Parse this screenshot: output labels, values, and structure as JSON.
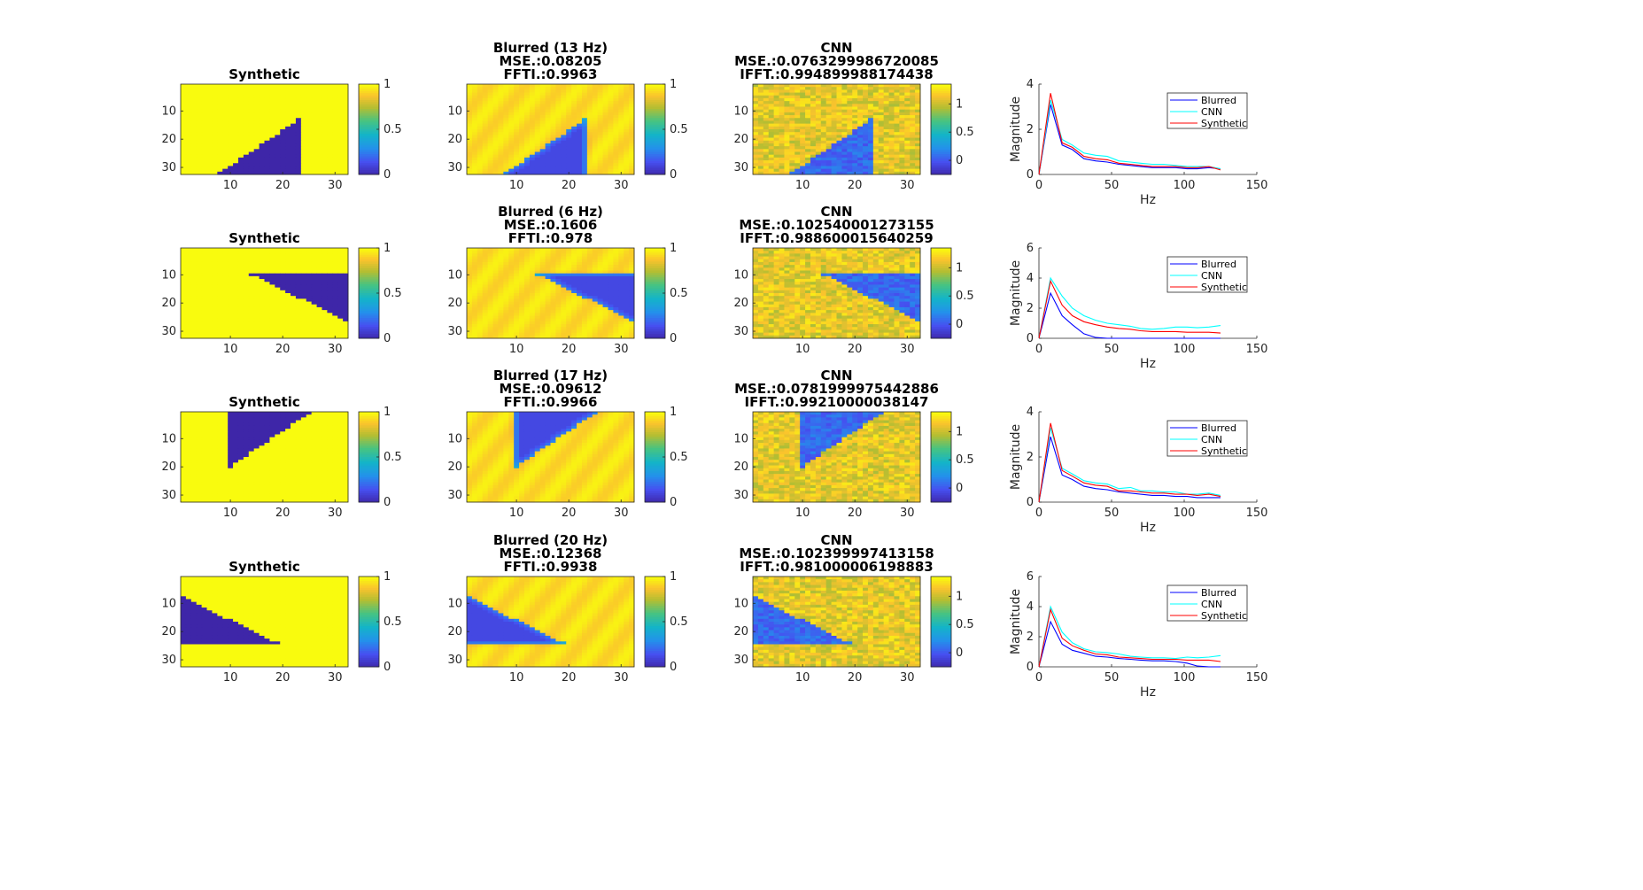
{
  "chart_data": [
    {
      "row": 0,
      "type": "heatmap",
      "panels": [
        {
          "kind": "synthetic",
          "title_lines": [
            "Synthetic"
          ],
          "pattern": {
            "shape": "tri_bottom",
            "x1": 8,
            "x2": 23,
            "ytop": 13
          },
          "cmax": 1,
          "cbar_ticks": [
            "1",
            "0.5",
            "0"
          ]
        },
        {
          "kind": "blurred",
          "title_lines": [
            "Blurred (13 Hz)",
            "MSE.:0.08205",
            "FFTI.:0.9963"
          ],
          "pattern": {
            "shape": "tri_bottom",
            "x1": 8,
            "x2": 23,
            "ytop": 13
          },
          "cmax": 1,
          "cbar_ticks": [
            "1",
            "0.5",
            "0"
          ]
        },
        {
          "kind": "cnn",
          "title_lines": [
            "CNN",
            "MSE.:0.0763299986720085",
            "IFFT.:0.994899988174438"
          ],
          "pattern": {
            "shape": "tri_bottom",
            "x1": 8,
            "x2": 23,
            "ytop": 13
          },
          "cmax": 1.35,
          "cbar_ticks": [
            "1",
            "0.5",
            "0"
          ]
        }
      ],
      "spectrum": {
        "type": "line",
        "xlabel": "Hz",
        "ylabel": "Magnitude",
        "xlim": [
          0,
          150
        ],
        "ylim": [
          0,
          4
        ],
        "yticks": [
          "0",
          "2",
          "4"
        ],
        "xticks": [
          "0",
          "50",
          "100",
          "150"
        ],
        "legend": [
          "Blurred",
          "CNN",
          "Synthetic"
        ],
        "x": [
          0,
          8,
          16,
          23,
          31,
          39,
          47,
          55,
          63,
          70,
          78,
          86,
          94,
          102,
          109,
          117,
          125
        ],
        "series": [
          {
            "name": "Blurred",
            "values": [
              0,
              3.1,
              1.3,
              1.1,
              0.7,
              0.6,
              0.55,
              0.45,
              0.4,
              0.35,
              0.3,
              0.3,
              0.3,
              0.25,
              0.25,
              0.3,
              0.25
            ]
          },
          {
            "name": "CNN",
            "values": [
              0,
              3.3,
              1.55,
              1.3,
              0.95,
              0.85,
              0.8,
              0.6,
              0.55,
              0.5,
              0.45,
              0.45,
              0.4,
              0.35,
              0.35,
              0.35,
              0.25
            ]
          },
          {
            "name": "Synthetic",
            "values": [
              0,
              3.6,
              1.4,
              1.2,
              0.8,
              0.7,
              0.65,
              0.5,
              0.45,
              0.4,
              0.35,
              0.35,
              0.35,
              0.3,
              0.3,
              0.35,
              0.2
            ]
          }
        ]
      }
    },
    {
      "row": 1,
      "type": "heatmap",
      "panels": [
        {
          "kind": "synthetic",
          "title_lines": [
            "Synthetic"
          ],
          "pattern": {
            "shape": "tri_top_right",
            "x1": 14,
            "ytop": 10,
            "ybot": 26
          },
          "cmax": 1,
          "cbar_ticks": [
            "1",
            "0.5",
            "0"
          ]
        },
        {
          "kind": "blurred",
          "title_lines": [
            "Blurred (6 Hz)",
            "MSE.:0.1606",
            "FFTI.:0.978"
          ],
          "pattern": {
            "shape": "tri_top_right",
            "x1": 14,
            "ytop": 10,
            "ybot": 26
          },
          "cmax": 1,
          "cbar_ticks": [
            "1",
            "0.5",
            "0"
          ]
        },
        {
          "kind": "cnn",
          "title_lines": [
            "CNN",
            "MSE.:0.102540001273155",
            "IFFT.:0.988600015640259"
          ],
          "pattern": {
            "shape": "tri_top_right",
            "x1": 14,
            "ytop": 10,
            "ybot": 26
          },
          "cmax": 1.35,
          "cbar_ticks": [
            "1",
            "0.5",
            "0"
          ]
        }
      ],
      "spectrum": {
        "type": "line",
        "xlabel": "Hz",
        "ylabel": "Magnitude",
        "xlim": [
          0,
          150
        ],
        "ylim": [
          0,
          6
        ],
        "yticks": [
          "0",
          "2",
          "4",
          "6"
        ],
        "xticks": [
          "0",
          "50",
          "100",
          "150"
        ],
        "legend": [
          "Blurred",
          "CNN",
          "Synthetic"
        ],
        "x": [
          0,
          8,
          16,
          23,
          31,
          39,
          47,
          55,
          63,
          70,
          78,
          86,
          94,
          102,
          109,
          117,
          125
        ],
        "series": [
          {
            "name": "Blurred",
            "values": [
              0,
              3,
              1.5,
              0.9,
              0.3,
              0.05,
              0,
              0,
              0,
              0,
              0,
              0,
              0,
              0,
              0,
              0,
              0
            ]
          },
          {
            "name": "CNN",
            "values": [
              0,
              4,
              2.8,
              2,
              1.5,
              1.2,
              1,
              0.9,
              0.8,
              0.65,
              0.6,
              0.65,
              0.75,
              0.75,
              0.7,
              0.75,
              0.85
            ]
          },
          {
            "name": "Synthetic",
            "values": [
              0,
              3.8,
              2.2,
              1.5,
              1.1,
              0.9,
              0.75,
              0.65,
              0.6,
              0.5,
              0.45,
              0.45,
              0.45,
              0.4,
              0.4,
              0.4,
              0.35
            ]
          }
        ]
      }
    },
    {
      "row": 2,
      "type": "heatmap",
      "panels": [
        {
          "kind": "synthetic",
          "title_lines": [
            "Synthetic"
          ],
          "pattern": {
            "shape": "tri_top_left",
            "x1": 10,
            "x2": 25,
            "ybot": 20
          },
          "cmax": 1,
          "cbar_ticks": [
            "1",
            "0.5",
            "0"
          ]
        },
        {
          "kind": "blurred",
          "title_lines": [
            "Blurred (17 Hz)",
            "MSE.:0.09612",
            "FFTI.:0.9966"
          ],
          "pattern": {
            "shape": "tri_top_left",
            "x1": 10,
            "x2": 25,
            "ybot": 20
          },
          "cmax": 1,
          "cbar_ticks": [
            "1",
            "0.5",
            "0"
          ]
        },
        {
          "kind": "cnn",
          "title_lines": [
            "CNN",
            "MSE.:0.0781999975442886",
            "IFFT.:0.99210000038147"
          ],
          "pattern": {
            "shape": "tri_top_left",
            "x1": 10,
            "x2": 25,
            "ybot": 20
          },
          "cmax": 1.35,
          "cbar_ticks": [
            "1",
            "0.5",
            "0"
          ]
        }
      ],
      "spectrum": {
        "type": "line",
        "xlabel": "Hz",
        "ylabel": "Magnitude",
        "xlim": [
          0,
          150
        ],
        "ylim": [
          0,
          4
        ],
        "yticks": [
          "0",
          "2",
          "4"
        ],
        "xticks": [
          "0",
          "50",
          "100",
          "150"
        ],
        "legend": [
          "Blurred",
          "CNN",
          "Synthetic"
        ],
        "x": [
          0,
          8,
          16,
          23,
          31,
          39,
          47,
          55,
          63,
          70,
          78,
          86,
          94,
          102,
          109,
          117,
          125
        ],
        "series": [
          {
            "name": "Blurred",
            "values": [
              0,
              2.9,
              1.2,
              1,
              0.7,
              0.6,
              0.55,
              0.45,
              0.4,
              0.35,
              0.3,
              0.3,
              0.25,
              0.25,
              0.2,
              0.2,
              0.2
            ]
          },
          {
            "name": "CNN",
            "values": [
              0,
              3.3,
              1.5,
              1.25,
              0.95,
              0.85,
              0.8,
              0.6,
              0.65,
              0.5,
              0.5,
              0.45,
              0.45,
              0.35,
              0.35,
              0.4,
              0.3
            ]
          },
          {
            "name": "Synthetic",
            "values": [
              0,
              3.5,
              1.4,
              1.15,
              0.85,
              0.75,
              0.7,
              0.5,
              0.5,
              0.45,
              0.4,
              0.4,
              0.35,
              0.35,
              0.3,
              0.35,
              0.25
            ]
          }
        ]
      }
    },
    {
      "row": 3,
      "type": "heatmap",
      "panels": [
        {
          "kind": "synthetic",
          "title_lines": [
            "Synthetic"
          ],
          "pattern": {
            "shape": "tri_left",
            "x2": 19,
            "ytop": 8,
            "ybot": 24
          },
          "cmax": 1,
          "cbar_ticks": [
            "1",
            "0.5",
            "0"
          ]
        },
        {
          "kind": "blurred",
          "title_lines": [
            "Blurred (20 Hz)",
            "MSE.:0.12368",
            "FFTI.:0.9938"
          ],
          "pattern": {
            "shape": "tri_left",
            "x2": 19,
            "ytop": 8,
            "ybot": 24
          },
          "cmax": 1,
          "cbar_ticks": [
            "1",
            "0.5",
            "0"
          ]
        },
        {
          "kind": "cnn",
          "title_lines": [
            "CNN",
            "MSE.:0.102399997413158",
            "IFFT.:0.981000006198883"
          ],
          "pattern": {
            "shape": "tri_left",
            "x2": 19,
            "ytop": 8,
            "ybot": 24
          },
          "cmax": 1.35,
          "cbar_ticks": [
            "1",
            "0.5",
            "0"
          ]
        }
      ],
      "spectrum": {
        "type": "line",
        "xlabel": "Hz",
        "ylabel": "Magnitude",
        "xlim": [
          0,
          150
        ],
        "ylim": [
          0,
          6
        ],
        "yticks": [
          "0",
          "2",
          "4",
          "6"
        ],
        "xticks": [
          "0",
          "50",
          "100",
          "150"
        ],
        "legend": [
          "Blurred",
          "CNN",
          "Synthetic"
        ],
        "x": [
          0,
          8,
          16,
          23,
          31,
          39,
          47,
          55,
          63,
          70,
          78,
          86,
          94,
          102,
          109,
          117,
          125
        ],
        "series": [
          {
            "name": "Blurred",
            "values": [
              0,
              3,
              1.5,
              1.1,
              0.9,
              0.7,
              0.65,
              0.55,
              0.5,
              0.45,
              0.4,
              0.4,
              0.35,
              0.25,
              0.05,
              0,
              0
            ]
          },
          {
            "name": "CNN",
            "values": [
              0,
              4,
              2.3,
              1.6,
              1.2,
              1,
              0.95,
              0.85,
              0.7,
              0.65,
              0.6,
              0.6,
              0.55,
              0.65,
              0.6,
              0.65,
              0.75
            ]
          },
          {
            "name": "Synthetic",
            "values": [
              0,
              3.8,
              1.9,
              1.4,
              1.1,
              0.85,
              0.8,
              0.65,
              0.6,
              0.55,
              0.5,
              0.5,
              0.5,
              0.45,
              0.45,
              0.45,
              0.35
            ]
          }
        ]
      }
    }
  ],
  "heatmap_axes": {
    "xticks": [
      "10",
      "20",
      "30"
    ],
    "yticks": [
      "10",
      "20",
      "30"
    ]
  },
  "colors": {
    "blurred": "#0000ff",
    "cnn": "#00ffff",
    "synthetic": "#ff0000",
    "high": "#f9fb0e",
    "low": "#3e26a8"
  }
}
